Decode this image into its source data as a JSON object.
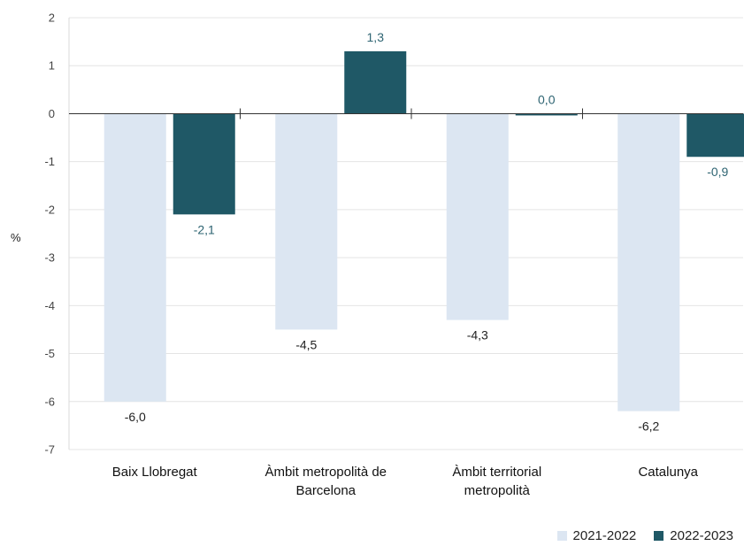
{
  "chart_data": {
    "type": "bar",
    "categories": [
      [
        "Baix Llobregat"
      ],
      [
        "Àmbit metropolità de",
        "Barcelona"
      ],
      [
        "Àmbit territorial",
        "metropolità"
      ],
      [
        "Catalunya"
      ]
    ],
    "series": [
      {
        "name": "2021-2022",
        "color": "#dce6f2",
        "label_color": "#222222",
        "values": [
          -6.0,
          -4.5,
          -4.3,
          -6.2
        ],
        "labels": [
          "-6,0",
          "-4,5",
          "-4,3",
          "-6,2"
        ]
      },
      {
        "name": "2022-2023",
        "color": "#1f5866",
        "label_color": "#2e6472",
        "values": [
          -2.1,
          1.3,
          0.0,
          -0.9
        ],
        "labels": [
          "-2,1",
          "1,3",
          "0,0",
          "-0,9"
        ]
      }
    ],
    "ylabel": "%",
    "ylim": [
      -7,
      2
    ],
    "yticks": [
      2,
      1,
      0,
      -1,
      -2,
      -3,
      -4,
      -5,
      -6,
      -7
    ],
    "ytick_labels": [
      "2",
      "1",
      "0",
      "-1",
      "-2",
      "-3",
      "-4",
      "-5",
      "-6",
      "-7"
    ],
    "grid": true,
    "legend_position": "bottom-right"
  }
}
